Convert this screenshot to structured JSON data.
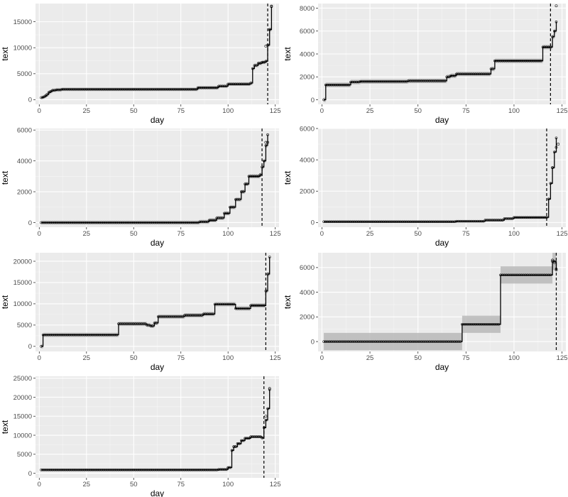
{
  "colors": {
    "panel_background": "#ebebeb",
    "grid_major": "#ffffff",
    "grid_minor": "#f5f5f5",
    "fit_line": "#000000",
    "point_outline": "#000000",
    "ribbon": "#b8b8b8",
    "vline": "#000000",
    "tick_label": "#4d4d4d"
  },
  "chart_data": [
    {
      "type": "line",
      "xlabel": "day",
      "ylabel": "text",
      "xlim": [
        -2,
        127
      ],
      "ylim": [
        -900,
        18500
      ],
      "x_ticks": [
        0,
        25,
        50,
        75,
        100,
        125
      ],
      "y_ticks": [
        0,
        5000,
        10000,
        15000
      ],
      "vline_x": 121,
      "ribbon_halfwidth": 350,
      "steps": [
        [
          1,
          400
        ],
        [
          2,
          500
        ],
        [
          3,
          700
        ],
        [
          4,
          1000
        ],
        [
          5,
          1400
        ],
        [
          6,
          1600
        ],
        [
          7,
          1800
        ],
        [
          9,
          1900
        ],
        [
          12,
          2000
        ],
        [
          84,
          2300
        ],
        [
          95,
          2600
        ],
        [
          100,
          3000
        ],
        [
          112,
          3200
        ],
        [
          113,
          6000
        ],
        [
          114,
          6600
        ],
        [
          116,
          7000
        ],
        [
          118,
          7200
        ],
        [
          120,
          7400
        ],
        [
          121,
          10500
        ],
        [
          122,
          13500
        ],
        [
          123,
          17900
        ]
      ],
      "extra_points": [
        [
          120,
          10300
        ],
        [
          122,
          13500
        ],
        [
          123,
          18000
        ]
      ]
    },
    {
      "type": "line",
      "xlabel": "day",
      "ylabel": "text",
      "xlim": [
        -2,
        127
      ],
      "ylim": [
        -400,
        8400
      ],
      "x_ticks": [
        0,
        25,
        50,
        75,
        100,
        125
      ],
      "y_ticks": [
        0,
        2000,
        4000,
        6000,
        8000
      ],
      "vline_x": 119,
      "ribbon_halfwidth": 200,
      "steps": [
        [
          1,
          0
        ],
        [
          2,
          1300
        ],
        [
          4,
          1300
        ],
        [
          15,
          1550
        ],
        [
          20,
          1600
        ],
        [
          45,
          1650
        ],
        [
          65,
          2000
        ],
        [
          67,
          2100
        ],
        [
          70,
          2250
        ],
        [
          88,
          2700
        ],
        [
          90,
          3400
        ],
        [
          115,
          4600
        ],
        [
          119,
          4600
        ],
        [
          120,
          5500
        ],
        [
          121,
          6000
        ],
        [
          122,
          6800
        ]
      ],
      "extra_points": [
        [
          122,
          8200
        ]
      ]
    },
    {
      "type": "line",
      "xlabel": "day",
      "ylabel": "text",
      "xlim": [
        -2,
        127
      ],
      "ylim": [
        -300,
        6100
      ],
      "x_ticks": [
        0,
        25,
        50,
        75,
        100,
        125
      ],
      "y_ticks": [
        0,
        2000,
        4000,
        6000
      ],
      "vline_x": 118,
      "ribbon_halfwidth": 130,
      "steps": [
        [
          1,
          0
        ],
        [
          85,
          50
        ],
        [
          90,
          150
        ],
        [
          94,
          300
        ],
        [
          98,
          600
        ],
        [
          101,
          1000
        ],
        [
          104,
          1500
        ],
        [
          107,
          2000
        ],
        [
          109,
          2500
        ],
        [
          111,
          3000
        ],
        [
          117,
          3100
        ],
        [
          118,
          3600
        ],
        [
          119,
          4000
        ],
        [
          120,
          5000
        ],
        [
          121,
          5700
        ]
      ],
      "extra_points": [
        [
          120,
          5200
        ],
        [
          121,
          5200
        ]
      ]
    },
    {
      "type": "line",
      "xlabel": "day",
      "ylabel": "text",
      "xlim": [
        -2,
        127
      ],
      "ylim": [
        -300,
        6000
      ],
      "x_ticks": [
        0,
        25,
        50,
        75,
        100,
        125
      ],
      "y_ticks": [
        0,
        2000,
        4000,
        6000
      ],
      "vline_x": 117,
      "ribbon_halfwidth": 80,
      "steps": [
        [
          1,
          50
        ],
        [
          70,
          80
        ],
        [
          85,
          150
        ],
        [
          95,
          250
        ],
        [
          100,
          320
        ],
        [
          117,
          330
        ],
        [
          118,
          1500
        ],
        [
          119,
          2500
        ],
        [
          120,
          3500
        ],
        [
          121,
          4500
        ],
        [
          122,
          5400
        ]
      ],
      "extra_points": [
        [
          120,
          3500
        ],
        [
          122,
          4800
        ],
        [
          123,
          5000
        ]
      ]
    },
    {
      "type": "line",
      "xlabel": "day",
      "ylabel": "text",
      "xlim": [
        -2,
        127
      ],
      "ylim": [
        -1200,
        22000
      ],
      "x_ticks": [
        0,
        25,
        50,
        75,
        100,
        125
      ],
      "y_ticks": [
        0,
        5000,
        10000,
        15000,
        20000
      ],
      "vline_x": 120,
      "ribbon_halfwidth": 500,
      "steps": [
        [
          1,
          0
        ],
        [
          2,
          2700
        ],
        [
          42,
          5300
        ],
        [
          57,
          5000
        ],
        [
          59,
          4800
        ],
        [
          61,
          5500
        ],
        [
          63,
          7000
        ],
        [
          77,
          7300
        ],
        [
          87,
          7600
        ],
        [
          93,
          9900
        ],
        [
          104,
          8900
        ],
        [
          112,
          9600
        ],
        [
          120,
          13000
        ],
        [
          121,
          17000
        ],
        [
          122,
          21000
        ]
      ],
      "extra_points": []
    },
    {
      "type": "line",
      "xlabel": "day",
      "ylabel": "text",
      "xlim": [
        -2,
        127
      ],
      "ylim": [
        -800,
        7200
      ],
      "x_ticks": [
        0,
        25,
        50,
        75,
        100,
        125
      ],
      "y_ticks": [
        0,
        2000,
        4000,
        6000
      ],
      "vline_x": 122,
      "ribbon_halfwidth": 700,
      "steps": [
        [
          1,
          0
        ],
        [
          73,
          1400
        ],
        [
          93,
          5400
        ],
        [
          120,
          6500
        ],
        [
          121,
          6500
        ],
        [
          122,
          5900
        ]
      ],
      "extra_points": [
        [
          120,
          6600
        ],
        [
          121,
          6400
        ],
        [
          122,
          5800
        ]
      ]
    },
    {
      "type": "line",
      "xlabel": "day",
      "ylabel": "text",
      "xlim": [
        -2,
        127
      ],
      "ylim": [
        -1200,
        25500
      ],
      "x_ticks": [
        0,
        25,
        50,
        75,
        100,
        125
      ],
      "y_ticks": [
        0,
        5000,
        10000,
        15000,
        20000,
        25000
      ],
      "vline_x": 119,
      "ribbon_halfwidth": 400,
      "steps": [
        [
          1,
          900
        ],
        [
          95,
          1000
        ],
        [
          100,
          1500
        ],
        [
          102,
          6000
        ],
        [
          103,
          7000
        ],
        [
          105,
          7800
        ],
        [
          107,
          8600
        ],
        [
          109,
          9200
        ],
        [
          112,
          9600
        ],
        [
          118,
          9300
        ],
        [
          119,
          12000
        ],
        [
          120,
          14000
        ],
        [
          121,
          17000
        ],
        [
          122,
          22000
        ]
      ],
      "extra_points": [
        [
          120,
          15000
        ],
        [
          122,
          22300
        ]
      ]
    }
  ]
}
